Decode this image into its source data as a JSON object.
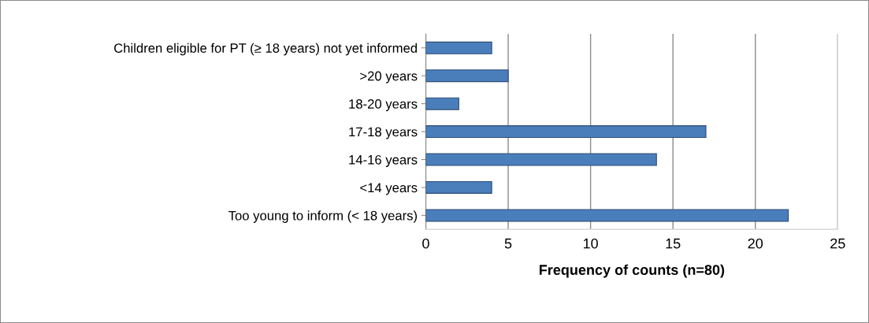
{
  "chart_data": {
    "type": "bar",
    "orientation": "horizontal",
    "categories": [
      "Children eligible for PT (≥ 18 years) not yet informed",
      ">20 years",
      "18-20 years",
      "17-18 years",
      "14-16 years",
      "<14 years",
      "Too young to inform (< 18 years)"
    ],
    "values": [
      4,
      5,
      2,
      17,
      14,
      4,
      22
    ],
    "color": "#4a7ebb",
    "xlabel": "Frequency of counts (n=80)",
    "xlim": [
      0,
      25
    ],
    "xticks": [
      0,
      5,
      10,
      15,
      20,
      25
    ],
    "grid": "x",
    "legend": false
  }
}
